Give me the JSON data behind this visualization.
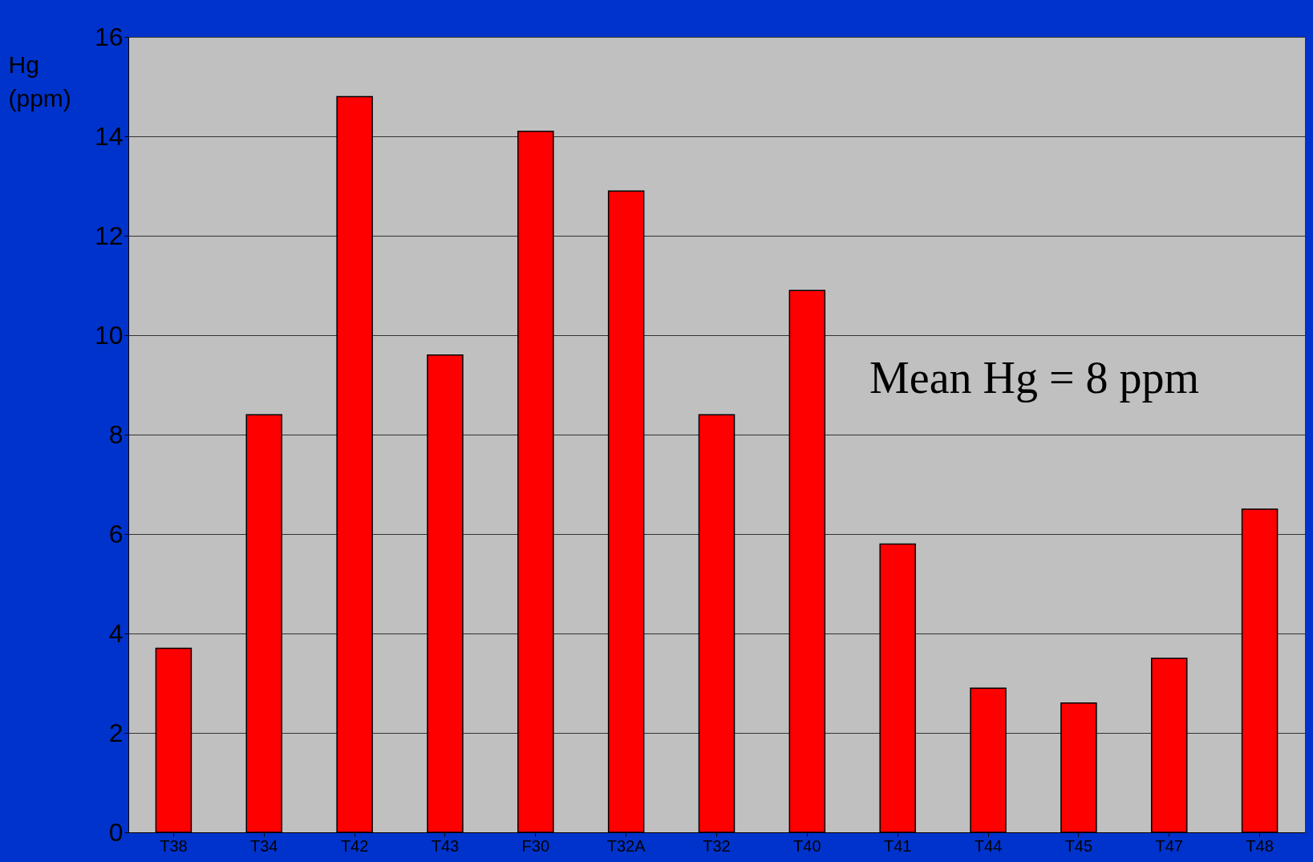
{
  "chart_data": {
    "type": "bar",
    "ylabel": "Hg (ppm)",
    "categories": [
      "T38",
      "T34",
      "T42",
      "T43",
      "F30",
      "T32A",
      "T32",
      "T40",
      "T41",
      "T44",
      "T45",
      "T47",
      "T48"
    ],
    "values": [
      3.7,
      8.4,
      14.8,
      9.6,
      14.1,
      12.9,
      8.4,
      10.9,
      5.8,
      2.9,
      2.6,
      3.5,
      6.5
    ],
    "color": "#ff0000",
    "ylim": [
      0,
      16
    ],
    "yticks": [
      0,
      2,
      4,
      6,
      8,
      10,
      12,
      14,
      16
    ],
    "grid": "y",
    "annotations": [
      "Mean Hg = 8 ppm"
    ]
  }
}
